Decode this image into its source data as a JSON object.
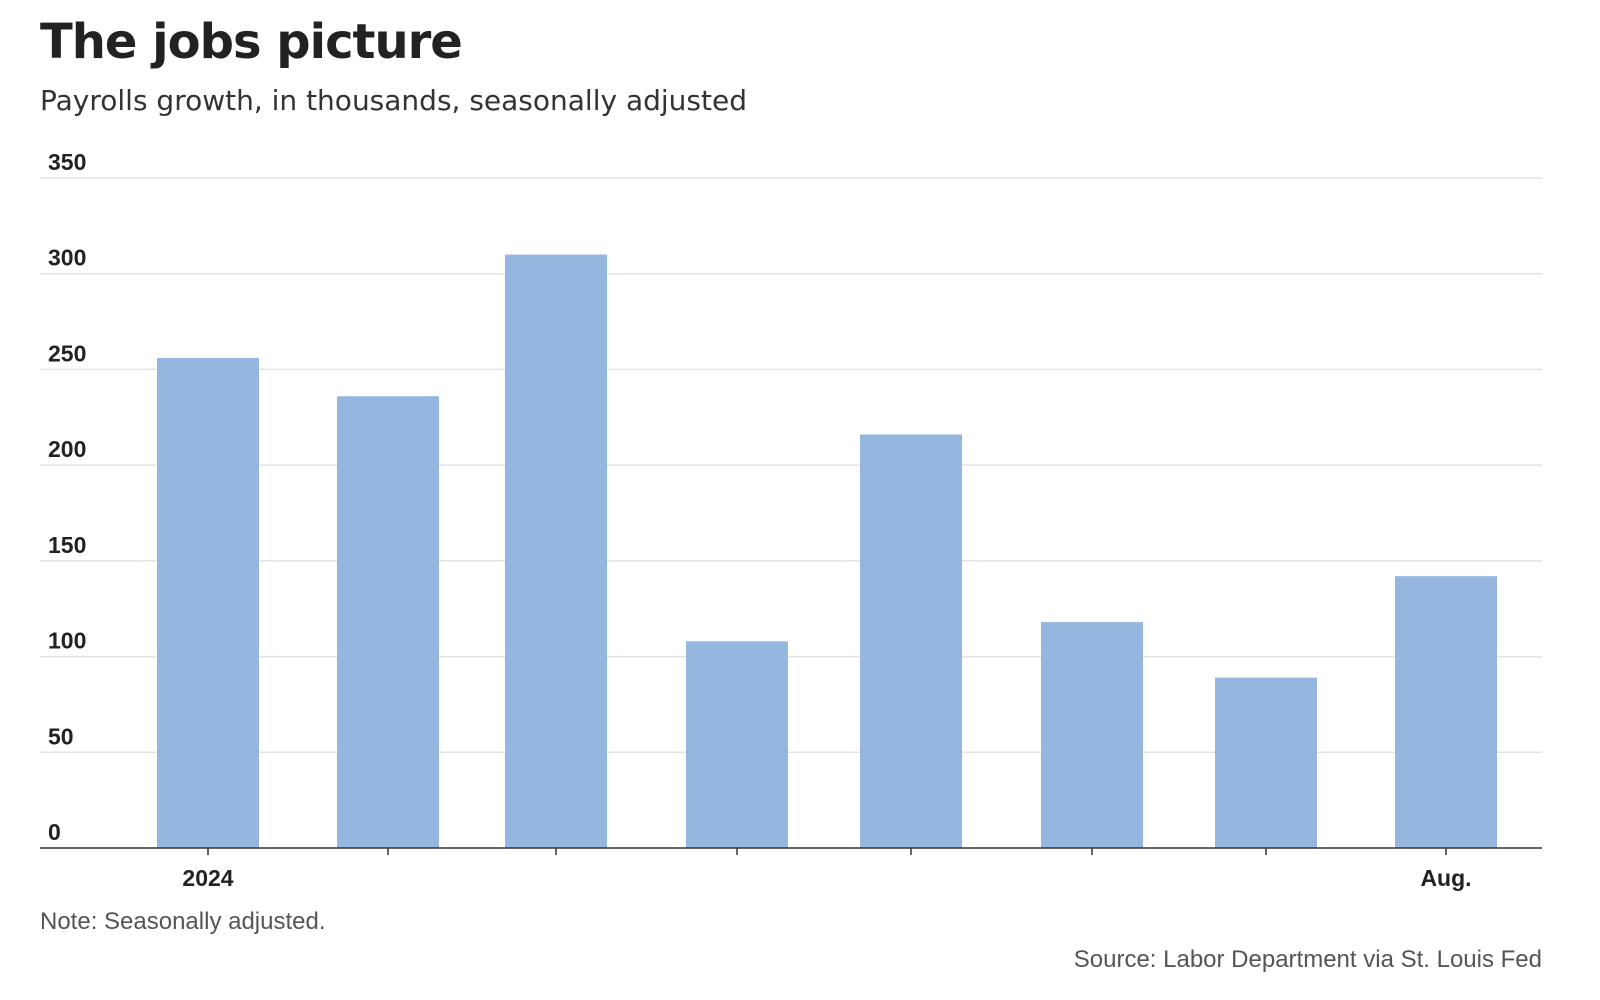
{
  "title": "The jobs picture",
  "subtitle": "Payrolls growth, in thousands, seasonally adjusted",
  "note": "Note: Seasonally adjusted.",
  "source": "Source: Labor Department via St. Louis Fed",
  "colors": {
    "bar": "#95b6df",
    "grid": "#e3e3e3",
    "axis": "#333333"
  },
  "chart_data": {
    "type": "bar",
    "categories": [
      "2024",
      "",
      "",
      "",
      "",
      "",
      "",
      "Aug."
    ],
    "values": [
      256,
      236,
      310,
      108,
      216,
      118,
      89,
      142
    ],
    "ylim": [
      0,
      350
    ],
    "yticks": [
      0,
      50,
      100,
      150,
      200,
      250,
      300,
      350
    ],
    "grid": true,
    "legend": "none"
  }
}
